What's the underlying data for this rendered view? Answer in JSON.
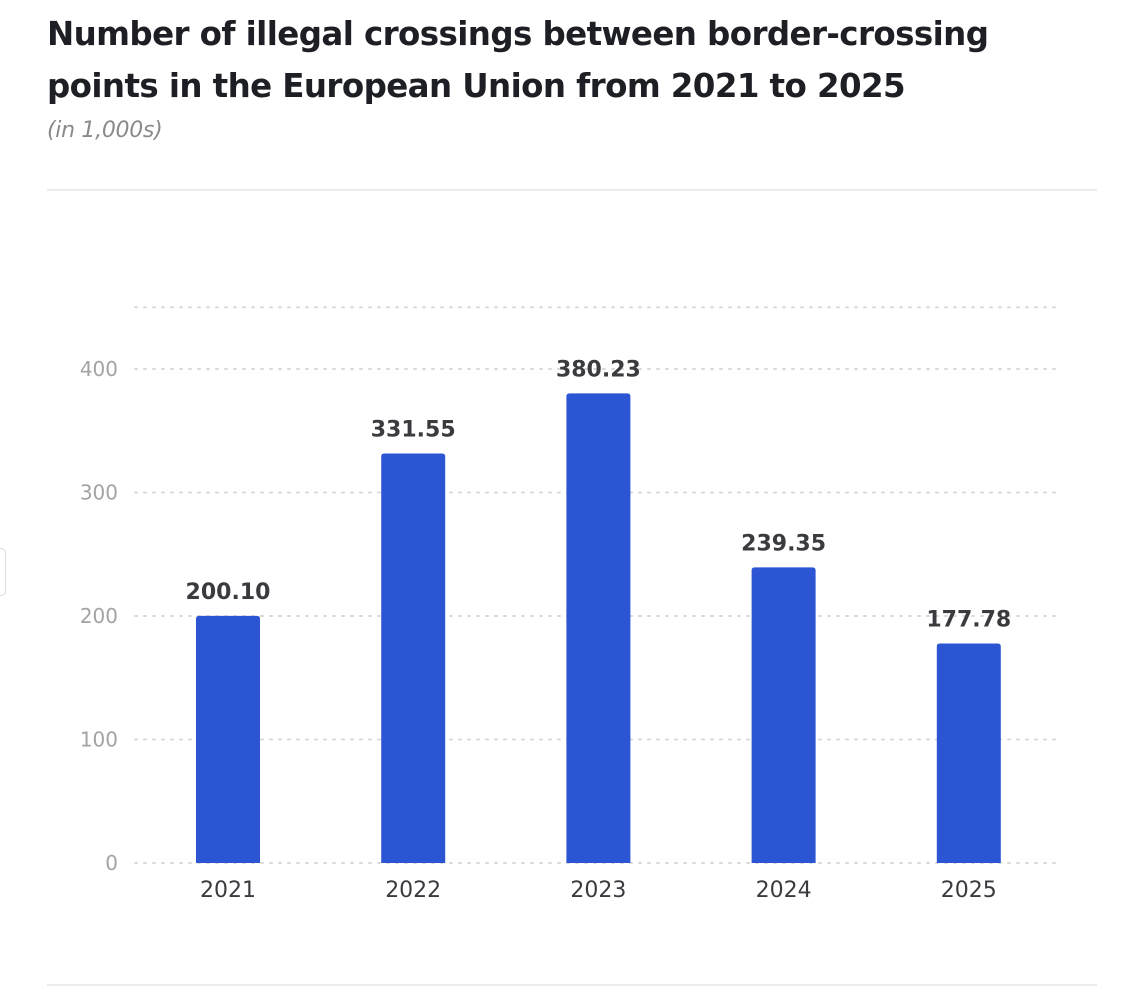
{
  "header": {
    "title": "Number of illegal crossings between border-crossing points in the European Union from 2021 to 2025",
    "subtitle": "(in 1,000s)"
  },
  "chart_data": {
    "type": "bar",
    "title": "Number of illegal crossings between border-crossing points in the European Union from 2021 to 2025",
    "subtitle": "(in 1,000s)",
    "xlabel": "",
    "ylabel": "",
    "categories": [
      "2021",
      "2022",
      "2023",
      "2024",
      "2025"
    ],
    "values": [
      200.1,
      331.55,
      380.23,
      239.35,
      177.78
    ],
    "value_labels": [
      "200.10",
      "331.55",
      "380.23",
      "239.35",
      "177.78"
    ],
    "ylim": [
      0,
      450
    ],
    "yticks": [
      0,
      100,
      200,
      300,
      400
    ],
    "ytick_labels": [
      "0",
      "100",
      "200",
      "300",
      "400"
    ],
    "gridlines": [
      0,
      100,
      200,
      300,
      400,
      450
    ],
    "grid": true,
    "grid_style": "dotted",
    "legend": "none",
    "colors": {
      "bar": "#2c55d3",
      "grid": "#d9d9d9",
      "tick_text": "#a3a3a3",
      "label_text": "#3a3b3f"
    }
  }
}
